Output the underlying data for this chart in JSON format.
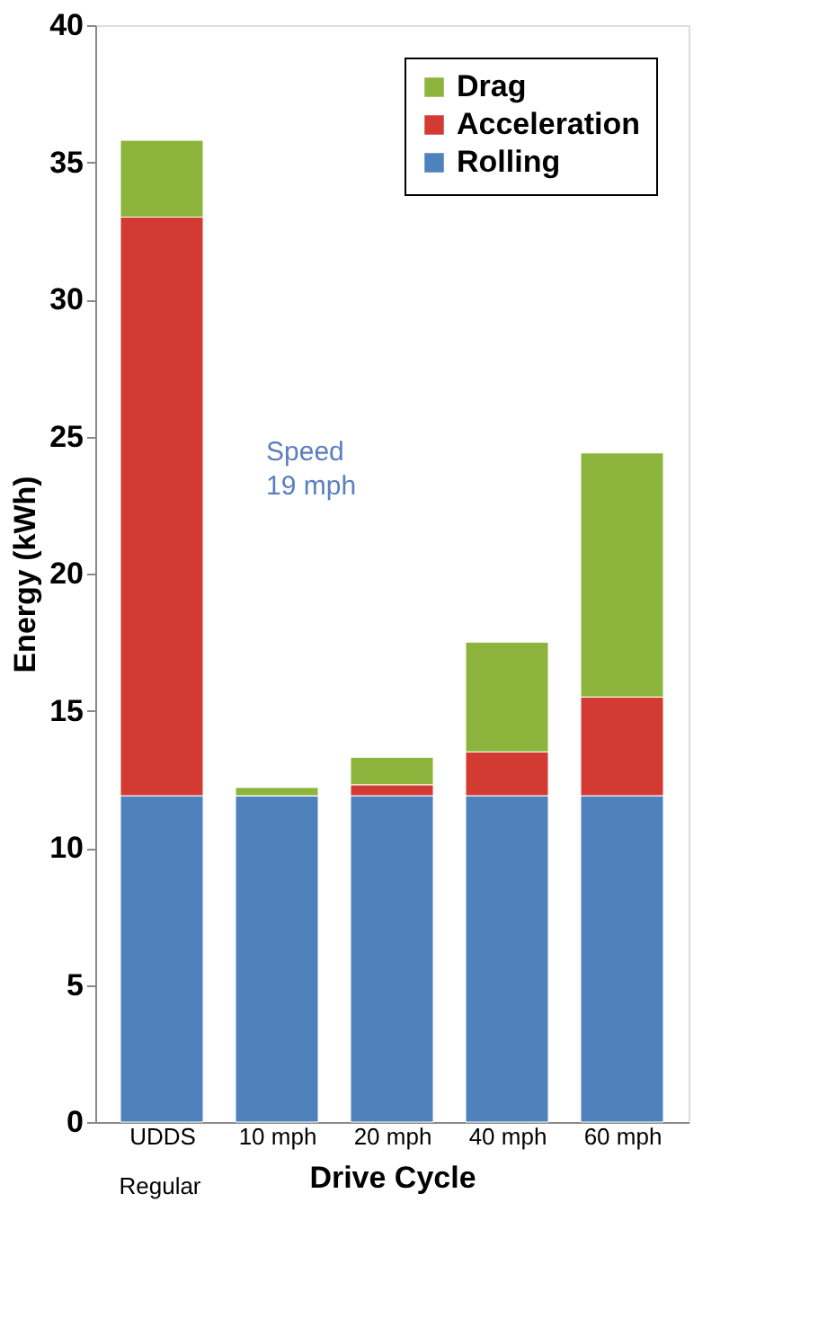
{
  "chart_data": {
    "type": "bar",
    "stacked": true,
    "ylabel": "Energy (kWh)",
    "xlabel": "Drive Cycle",
    "categories": [
      "UDDS",
      "10 mph",
      "20 mph",
      "40 mph",
      "60 mph"
    ],
    "series": [
      {
        "name": "Rolling",
        "color": "#4f81bd",
        "values": [
          11.9,
          11.9,
          11.9,
          11.9,
          11.9
        ]
      },
      {
        "name": "Acceleration",
        "color": "#d33a32",
        "values": [
          21.1,
          0.0,
          0.4,
          1.6,
          3.6
        ]
      },
      {
        "name": "Drag",
        "color": "#8db43c",
        "values": [
          2.8,
          0.3,
          1.0,
          4.0,
          8.9
        ]
      }
    ],
    "ylim": [
      0,
      40
    ],
    "yticks": [
      0,
      5,
      10,
      15,
      20,
      25,
      30,
      35,
      40
    ],
    "grid": false,
    "legend": "top right",
    "annotations": [
      "Speed\n19 mph",
      "Regular"
    ]
  }
}
